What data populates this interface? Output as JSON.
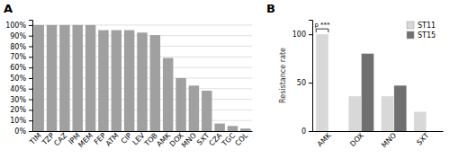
{
  "chart_data": [
    {
      "type": "bar",
      "title": "A",
      "categories": [
        "TIM",
        "TZP",
        "CAZ",
        "IPM",
        "MEM",
        "FEP",
        "ATM",
        "CIP",
        "LEV",
        "TOB",
        "AMK",
        "DOX",
        "MNO",
        "SXT",
        "CZA",
        "TGC",
        "COL"
      ],
      "values": [
        100,
        100,
        100,
        100,
        100,
        95.2,
        95.2,
        95.2,
        92.9,
        90.5,
        69.0,
        50.0,
        42.9,
        38.1,
        7.1,
        4.8,
        2.4
      ],
      "color": "#a0a0a0",
      "ylim": [
        0,
        105
      ],
      "yticks": [
        {
          "value": 0,
          "label": "0%"
        },
        {
          "value": 10,
          "label": "10%"
        },
        {
          "value": 20,
          "label": "20%"
        },
        {
          "value": 30,
          "label": "30%"
        },
        {
          "value": 40,
          "label": "40%"
        },
        {
          "value": 50,
          "label": "50%"
        },
        {
          "value": 60,
          "label": "60%"
        },
        {
          "value": 70,
          "label": "70%"
        },
        {
          "value": 80,
          "label": "80%"
        },
        {
          "value": 90,
          "label": "90%"
        },
        {
          "value": 100,
          "label": "100%"
        }
      ],
      "grid": true
    },
    {
      "type": "bar",
      "title": "B",
      "ylabel": "Resistance rate",
      "categories": [
        "AMK",
        "DOX",
        "MNO",
        "SXT"
      ],
      "series": [
        {
          "name": "ST11",
          "color": "#d8d8d8",
          "values": [
            100,
            36,
            36,
            20
          ]
        },
        {
          "name": "ST15",
          "color": "#707070",
          "values": [
            0,
            80,
            47,
            0
          ]
        }
      ],
      "ylim": [
        0,
        115
      ],
      "yticks": [
        0,
        50,
        100
      ],
      "grid": false,
      "legend": "top-right",
      "annotations": [
        "p ***"
      ]
    }
  ]
}
